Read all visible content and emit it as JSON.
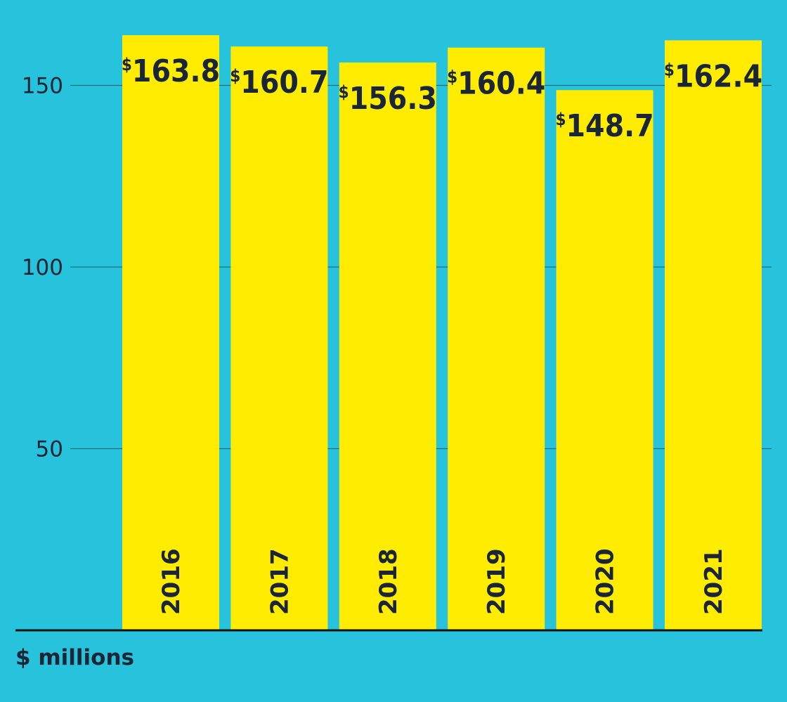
{
  "chart_data": {
    "type": "bar",
    "categories": [
      "2016",
      "2017",
      "2018",
      "2019",
      "2020",
      "2021"
    ],
    "values": [
      163.8,
      160.7,
      156.3,
      160.4,
      148.7,
      162.4
    ],
    "value_labels": [
      "163.8",
      "160.7",
      "156.3",
      "160.4",
      "148.7",
      "162.4"
    ],
    "currency_symbol": "$",
    "title": "",
    "xlabel": "",
    "ylabel": "",
    "unit_label": "$ millions",
    "ylim": [
      0,
      170
    ],
    "yticks": [
      50,
      100,
      150
    ],
    "grid": true,
    "legend": "none",
    "colors": {
      "background": "#27c2dc",
      "bar": "#ffec00",
      "text": "#1a2535",
      "gridline": "#1e6f80",
      "baseline": "#111111"
    }
  }
}
